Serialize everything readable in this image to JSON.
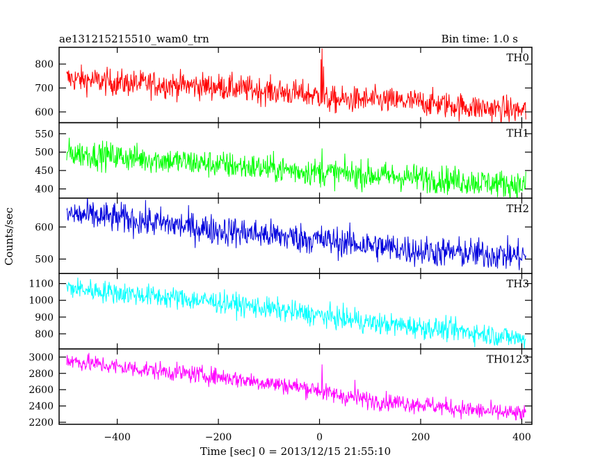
{
  "chart_data": {
    "type": "line",
    "title": "ae131215215510_wam0_trn",
    "subtitle": "Bin time: 1.0 s",
    "xlabel": "Time [sec] 0 = 2013/12/15 21:55:10",
    "ylabel": "Counts/sec",
    "xlim": [
      -515,
      420
    ],
    "xticks": [
      -400,
      -200,
      0,
      200,
      400
    ],
    "xtick_labels": [
      "−400",
      "−200",
      "0",
      "200",
      "400"
    ],
    "bin_seconds": 1.0,
    "panels": [
      {
        "name": "TH0",
        "color": "#ff0000",
        "ylim": [
          555,
          870
        ],
        "yticks": [
          600,
          700,
          800
        ],
        "ytick_labels": [
          "600",
          "700",
          "800"
        ],
        "trend": {
          "x": [
            -500,
            -400,
            -200,
            -50,
            0,
            10,
            100,
            200,
            300,
            400
          ],
          "y": [
            740,
            722,
            705,
            678,
            668,
            650,
            650,
            640,
            620,
            605
          ]
        },
        "noise": 28,
        "spikes": [
          {
            "x": 5,
            "y": 865
          },
          {
            "x": 3,
            "y": 820
          },
          {
            "x": 8,
            "y": 790
          }
        ]
      },
      {
        "name": "TH1",
        "color": "#00ff00",
        "ylim": [
          375,
          580
        ],
        "yticks": [
          400,
          450,
          500,
          550
        ],
        "ytick_labels": [
          "400",
          "450",
          "500",
          "550"
        ],
        "trend": {
          "x": [
            -500,
            -400,
            -200,
            0,
            200,
            400
          ],
          "y": [
            498,
            488,
            466,
            445,
            430,
            410
          ]
        },
        "noise": 19,
        "spikes": [
          {
            "x": 5,
            "y": 510
          }
        ]
      },
      {
        "name": "TH2",
        "color": "#0000dd",
        "ylim": [
          455,
          690
        ],
        "yticks": [
          500,
          600
        ],
        "ytick_labels": [
          "500",
          "600"
        ],
        "trend": {
          "x": [
            -500,
            -400,
            -200,
            0,
            200,
            400
          ],
          "y": [
            640,
            628,
            590,
            560,
            525,
            510
          ]
        },
        "noise": 24,
        "spikes": []
      },
      {
        "name": "TH3",
        "color": "#00ffff",
        "ylim": [
          710,
          1160
        ],
        "yticks": [
          800,
          900,
          1000,
          1100
        ],
        "ytick_labels": [
          "800",
          "900",
          "1000",
          "1100"
        ],
        "trend": {
          "x": [
            -500,
            -400,
            -200,
            0,
            100,
            200,
            300,
            400
          ],
          "y": [
            1075,
            1045,
            990,
            910,
            865,
            840,
            810,
            770
          ]
        },
        "noise": 33,
        "spikes": [
          {
            "x": 70,
            "y": 960
          }
        ]
      },
      {
        "name": "TH0123",
        "color": "#ff00ff",
        "ylim": [
          2175,
          3100
        ],
        "yticks": [
          2200,
          2400,
          2600,
          2800,
          3000
        ],
        "ytick_labels": [
          "2200",
          "2400",
          "2600",
          "2800",
          "3000"
        ],
        "trend": {
          "x": [
            -500,
            -400,
            -200,
            0,
            10,
            100,
            200,
            300,
            400
          ],
          "y": [
            2960,
            2880,
            2760,
            2600,
            2560,
            2470,
            2420,
            2350,
            2300
          ]
        },
        "noise": 55,
        "spikes": [
          {
            "x": 5,
            "y": 2910
          },
          {
            "x": 70,
            "y": 2720
          }
        ]
      }
    ]
  }
}
